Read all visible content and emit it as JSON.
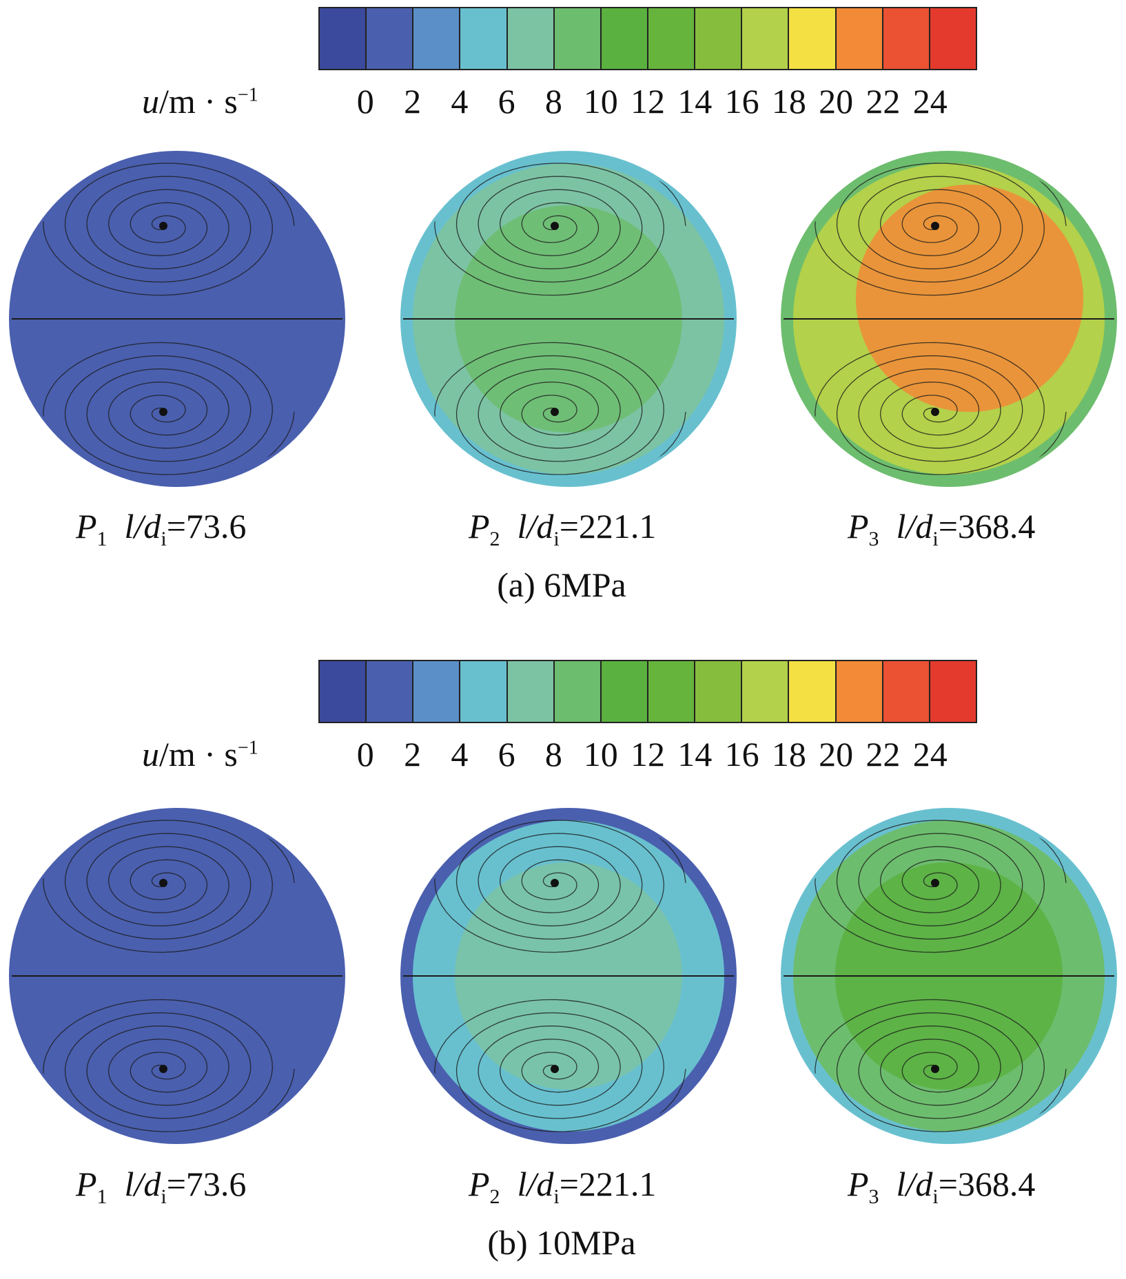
{
  "colorbar_colors": [
    "#3b4a9c",
    "#4a5fae",
    "#5a8fc8",
    "#68c0cf",
    "#7cc3a4",
    "#6dbd6e",
    "#5ab13f",
    "#66b43c",
    "#86bd3c",
    "#b3d14a",
    "#f4e043",
    "#f28a37",
    "#ea5233",
    "#e33a2d"
  ],
  "colorbar_ticks": [
    "0",
    "2",
    "4",
    "6",
    "8",
    "10",
    "12",
    "14",
    "16",
    "18",
    "20",
    "22",
    "24"
  ],
  "colorbar_label": {
    "var": "u",
    "unit": "/m · s",
    "exp": "−1"
  },
  "panels": [
    {
      "title": "(a) 6MPa",
      "disks": [
        {
          "p": "P",
          "p_sub": "1",
          "ratio": "l/d",
          "ratio_sub": "i",
          "value": "=73.6",
          "rim": "#4a5fae",
          "fill": "#4a5fae",
          "core": "#4a5fae"
        },
        {
          "p": "P",
          "p_sub": "2",
          "ratio": "l/d",
          "ratio_sub": "i",
          "value": "=221.1",
          "rim": "#68c0cf",
          "fill": "#7cc3a4",
          "core": "#6dbd6e"
        },
        {
          "p": "P",
          "p_sub": "3",
          "ratio": "l/d",
          "ratio_sub": "i",
          "value": "=368.4",
          "rim": "#6dbd6e",
          "fill": "#b3d14a",
          "core": "#f28a37"
        }
      ]
    },
    {
      "title": "(b) 10MPa",
      "disks": [
        {
          "p": "P",
          "p_sub": "1",
          "ratio": "l/d",
          "ratio_sub": "i",
          "value": "=73.6",
          "rim": "#4a5fae",
          "fill": "#4a5fae",
          "core": "#4a5fae"
        },
        {
          "p": "P",
          "p_sub": "2",
          "ratio": "l/d",
          "ratio_sub": "i",
          "value": "=221.1",
          "rim": "#4a5fae",
          "fill": "#68c0cf",
          "core": "#7cc3a4"
        },
        {
          "p": "P",
          "p_sub": "3",
          "ratio": "l/d",
          "ratio_sub": "i",
          "value": "=368.4",
          "rim": "#68c0cf",
          "fill": "#6dbd6e",
          "core": "#5ab13f"
        }
      ]
    }
  ]
}
